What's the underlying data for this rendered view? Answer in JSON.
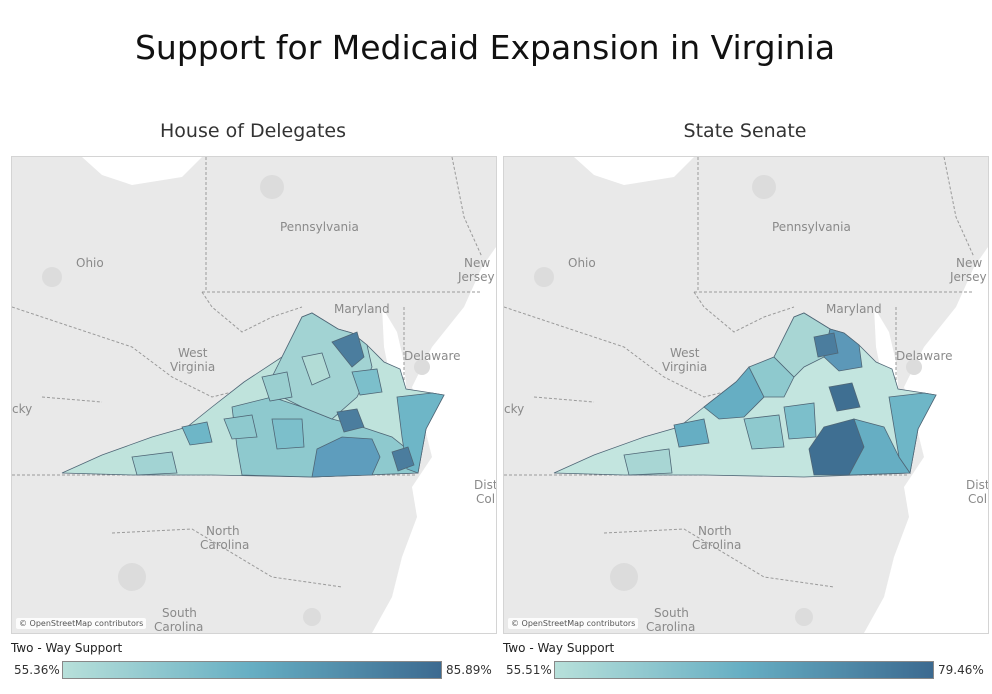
{
  "title": "Support for Medicaid Expansion in Virginia",
  "colors": {
    "land": "#e9e9e9",
    "water": "#ffffff",
    "urban": "#dcdcdc",
    "low": "#b7e0da",
    "mid": "#66aec3",
    "high": "#3c6a90"
  },
  "maps": [
    {
      "subtitle": "House of Delegates",
      "labels": {
        "ohio": "Ohio",
        "pennsylvania": "Pennsylvania",
        "new_jersey_1": "New",
        "new_jersey_2": "Jersey",
        "maryland": "Maryland",
        "west_virginia_1": "West",
        "west_virginia_2": "Virginia",
        "delaware": "Delaware",
        "kentucky": "cky",
        "district_1": "Dist",
        "district_2": "Col",
        "north_carolina_1": "North",
        "north_carolina_2": "Carolina",
        "south_carolina_1": "South",
        "south_carolina_2": "Carolina"
      },
      "attribution": "© OpenStreetMap contributors",
      "legend": {
        "title": "Two - Way Support",
        "min": "55.36%",
        "max": "85.89%"
      }
    },
    {
      "subtitle": "State Senate",
      "labels": {
        "ohio": "Ohio",
        "pennsylvania": "Pennsylvania",
        "new_jersey_1": "New",
        "new_jersey_2": "Jersey",
        "maryland": "Maryland",
        "west_virginia_1": "West",
        "west_virginia_2": "Virginia",
        "delaware": "Delaware",
        "kentucky": "cky",
        "district_1": "Dist",
        "district_2": "Col",
        "north_carolina_1": "North",
        "north_carolina_2": "Carolina",
        "south_carolina_1": "South",
        "south_carolina_2": "Carolina"
      },
      "attribution": "© OpenStreetMap contributors",
      "legend": {
        "title": "Two - Way Support",
        "min": "55.51%",
        "max": "79.46%"
      }
    }
  ]
}
